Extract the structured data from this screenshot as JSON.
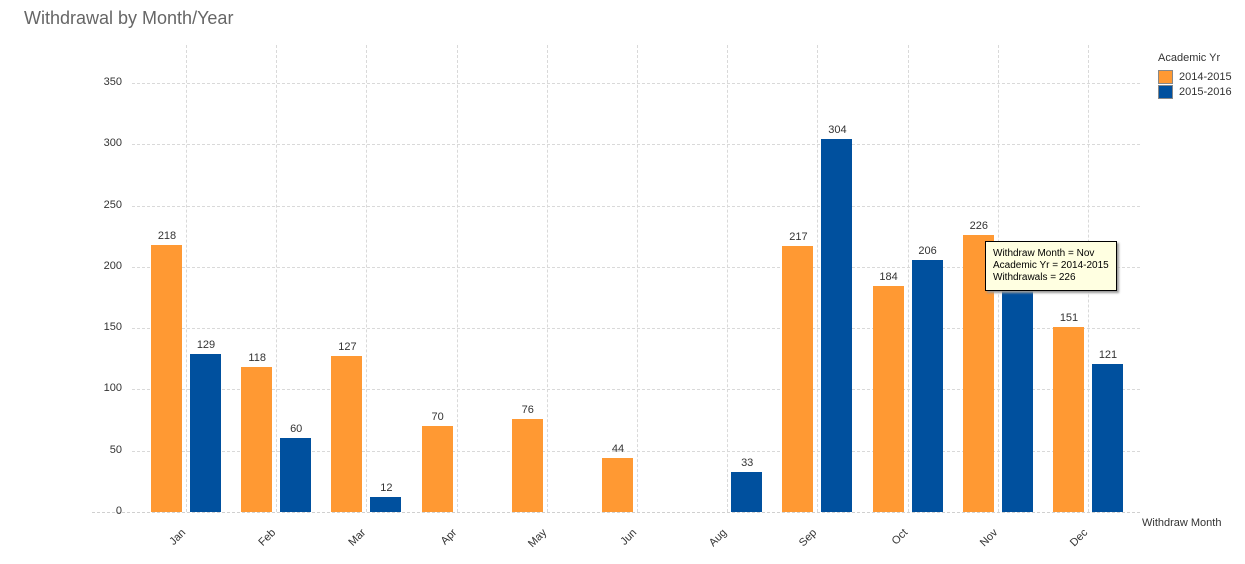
{
  "title": "Withdrawal by Month/Year",
  "legend": {
    "title": "Academic Yr",
    "items": [
      {
        "label": "2014-2015",
        "color": "#FF9933"
      },
      {
        "label": "2015-2016",
        "color": "#00509E"
      }
    ]
  },
  "x_axis_label": "Withdraw Month",
  "y_ticks": [
    "0",
    "50",
    "100",
    "150",
    "200",
    "250",
    "300",
    "350"
  ],
  "tooltip": {
    "line1": "Withdraw Month = Nov",
    "line2": "Academic Yr = 2014-2015",
    "line3": "Withdrawals = 226"
  },
  "chart_data": {
    "type": "bar",
    "title": "Withdrawal by Month/Year",
    "xlabel": "Withdraw Month",
    "ylabel": "",
    "ylim": [
      0,
      370
    ],
    "grid": true,
    "legend_position": "top-right",
    "legend_title": "Academic Yr",
    "categories": [
      "Jan",
      "Feb",
      "Mar",
      "Apr",
      "May",
      "Jun",
      "Aug",
      "Sep",
      "Oct",
      "Nov",
      "Dec"
    ],
    "series": [
      {
        "name": "2014-2015",
        "color": "#FF9933",
        "values": [
          218,
          118,
          127,
          70,
          76,
          44,
          null,
          217,
          184,
          226,
          151
        ]
      },
      {
        "name": "2015-2016",
        "color": "#00509E",
        "values": [
          129,
          60,
          12,
          null,
          null,
          null,
          33,
          304,
          206,
          190,
          121
        ]
      }
    ],
    "annotations": [
      "Nov 2015-2016 value hidden under tooltip (~190 estimated)"
    ]
  }
}
